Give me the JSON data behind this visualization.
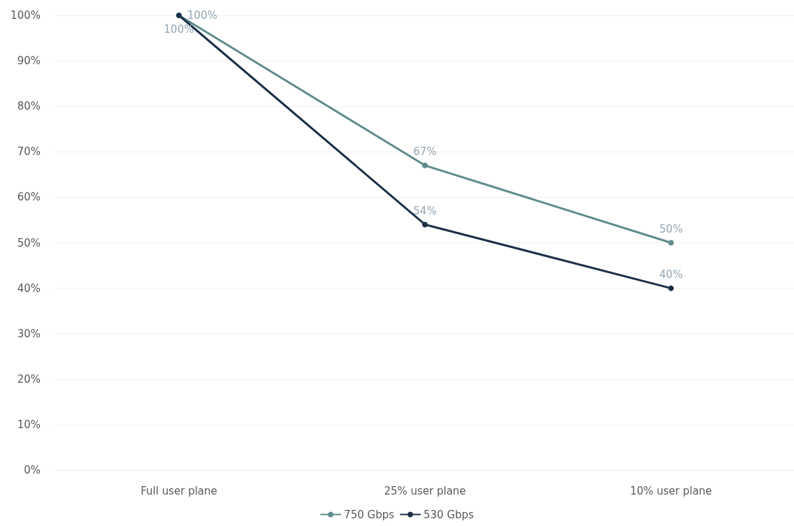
{
  "chart_data": {
    "type": "line",
    "categories": [
      "Full user plane",
      "25% user plane",
      "10% user plane"
    ],
    "series": [
      {
        "name": "750 Gbps",
        "color": "#5f8b8c",
        "values": [
          100,
          67,
          50
        ],
        "value_labels": [
          "100%",
          "67%",
          "50%"
        ]
      },
      {
        "name": "530 Gbps",
        "color": "#1c2f48",
        "values": [
          100,
          54,
          40
        ],
        "value_labels": [
          "100%",
          "54%",
          "40%"
        ]
      }
    ],
    "ylim": [
      0,
      100
    ],
    "yticks": [
      {
        "value": 0,
        "label": "0%"
      },
      {
        "value": 10,
        "label": "10%"
      },
      {
        "value": 20,
        "label": "20%"
      },
      {
        "value": 30,
        "label": "30%"
      },
      {
        "value": 40,
        "label": "40%"
      },
      {
        "value": 50,
        "label": "50%"
      },
      {
        "value": 60,
        "label": "60%"
      },
      {
        "value": 70,
        "label": "70%"
      },
      {
        "value": 80,
        "label": "80%"
      },
      {
        "value": 90,
        "label": "90%"
      },
      {
        "value": 100,
        "label": "100%"
      }
    ],
    "grid": "y",
    "legend": "bottom",
    "marker": "circle",
    "line_style": "solid"
  }
}
